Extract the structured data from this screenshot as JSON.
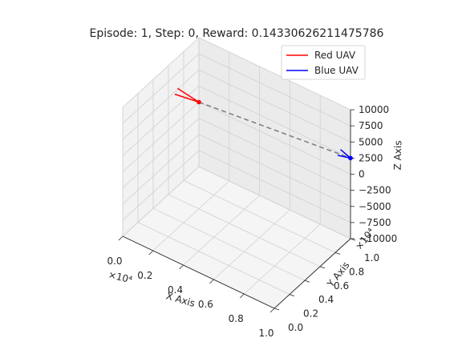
{
  "chart_data": {
    "type": "line",
    "projection": "3d",
    "title": "Episode: 1, Step: 0, Reward: 0.14330626211475786",
    "xlabel": "X Axis",
    "ylabel": "Y Axis",
    "zlabel": "Z Axis",
    "xlim": [
      0,
      1.0
    ],
    "ylim": [
      0,
      1.0
    ],
    "zlim": [
      -10000,
      10000
    ],
    "x_multiplier": "×10⁴",
    "y_multiplier": "×10⁴",
    "x_ticks": [
      "0.0",
      "0.2",
      "0.4",
      "0.6",
      "0.8",
      "1.0"
    ],
    "y_ticks": [
      "0.0",
      "0.2",
      "0.4",
      "0.6",
      "0.8",
      "1.0"
    ],
    "z_ticks": [
      "−10000",
      "−7500",
      "−5000",
      "−2500",
      "0",
      "2500",
      "5000",
      "7500",
      "10000"
    ],
    "grid": true,
    "legend_position": "top-right",
    "series": [
      {
        "name": "Red UAV",
        "color": "#ff0000",
        "position": {
          "x": 0.0,
          "y": 1.0,
          "z": 0
        },
        "heading": [
          -0.15,
          0.0,
          0
        ]
      },
      {
        "name": "Blue UAV",
        "color": "#0000ff",
        "position": {
          "x": 1.0,
          "y": 1.0,
          "z": 2500
        },
        "heading": [
          0.0,
          -0.15,
          2500
        ]
      }
    ],
    "connection": {
      "style": "dashed",
      "color": "#808080",
      "between": [
        "Red UAV",
        "Blue UAV"
      ]
    }
  }
}
